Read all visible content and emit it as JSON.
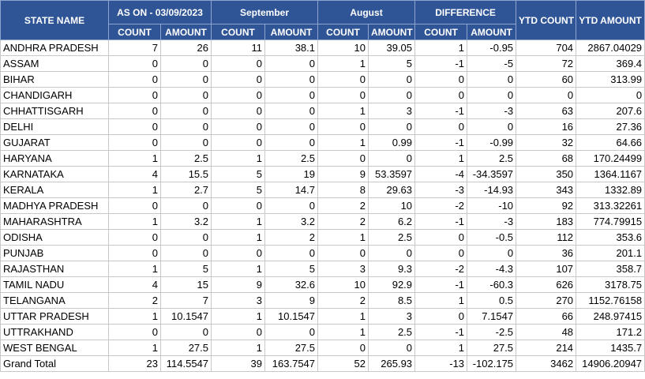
{
  "headers": {
    "state_name": "STATE NAME",
    "as_on": "AS ON - 03/09/2023",
    "september": "September",
    "august": "August",
    "difference": "DIFFERENCE",
    "ytd_count": "YTD COUNT",
    "ytd_amount": "YTD AMOUNT",
    "count": "COUNT",
    "amount": "AMOUNT"
  },
  "rows": [
    [
      "ANDHRA PRADESH",
      "7",
      "26",
      "11",
      "38.1",
      "10",
      "39.05",
      "1",
      "-0.95",
      "704",
      "2867.04029"
    ],
    [
      "ASSAM",
      "0",
      "0",
      "0",
      "0",
      "1",
      "5",
      "-1",
      "-5",
      "72",
      "369.4"
    ],
    [
      "BIHAR",
      "0",
      "0",
      "0",
      "0",
      "0",
      "0",
      "0",
      "0",
      "60",
      "313.99"
    ],
    [
      "CHANDIGARH",
      "0",
      "0",
      "0",
      "0",
      "0",
      "0",
      "0",
      "0",
      "0",
      "0"
    ],
    [
      "CHHATTISGARH",
      "0",
      "0",
      "0",
      "0",
      "1",
      "3",
      "-1",
      "-3",
      "63",
      "207.6"
    ],
    [
      "DELHI",
      "0",
      "0",
      "0",
      "0",
      "0",
      "0",
      "0",
      "0",
      "16",
      "27.36"
    ],
    [
      "GUJARAT",
      "0",
      "0",
      "0",
      "0",
      "1",
      "0.99",
      "-1",
      "-0.99",
      "32",
      "64.66"
    ],
    [
      "HARYANA",
      "1",
      "2.5",
      "1",
      "2.5",
      "0",
      "0",
      "1",
      "2.5",
      "68",
      "170.24499"
    ],
    [
      "KARNATAKA",
      "4",
      "15.5",
      "5",
      "19",
      "9",
      "53.3597",
      "-4",
      "-34.3597",
      "350",
      "1364.1167"
    ],
    [
      "KERALA",
      "1",
      "2.7",
      "5",
      "14.7",
      "8",
      "29.63",
      "-3",
      "-14.93",
      "343",
      "1332.89"
    ],
    [
      "MADHYA PRADESH",
      "0",
      "0",
      "0",
      "0",
      "2",
      "10",
      "-2",
      "-10",
      "92",
      "313.32261"
    ],
    [
      "MAHARASHTRA",
      "1",
      "3.2",
      "1",
      "3.2",
      "2",
      "6.2",
      "-1",
      "-3",
      "183",
      "774.79915"
    ],
    [
      "ODISHA",
      "0",
      "0",
      "1",
      "2",
      "1",
      "2.5",
      "0",
      "-0.5",
      "112",
      "353.6"
    ],
    [
      "PUNJAB",
      "0",
      "0",
      "0",
      "0",
      "0",
      "0",
      "0",
      "0",
      "36",
      "201.1"
    ],
    [
      "RAJASTHAN",
      "1",
      "5",
      "1",
      "5",
      "3",
      "9.3",
      "-2",
      "-4.3",
      "107",
      "358.7"
    ],
    [
      "TAMIL NADU",
      "4",
      "15",
      "9",
      "32.6",
      "10",
      "92.9",
      "-1",
      "-60.3",
      "626",
      "3178.75"
    ],
    [
      "TELANGANA",
      "2",
      "7",
      "3",
      "9",
      "2",
      "8.5",
      "1",
      "0.5",
      "270",
      "1152.76158"
    ],
    [
      "UTTAR PRADESH",
      "1",
      "10.1547",
      "1",
      "10.1547",
      "1",
      "3",
      "0",
      "7.1547",
      "66",
      "248.97415"
    ],
    [
      "UTTRAKHAND",
      "0",
      "0",
      "0",
      "0",
      "1",
      "2.5",
      "-1",
      "-2.5",
      "48",
      "171.2"
    ],
    [
      "WEST BENGAL",
      "1",
      "27.5",
      "1",
      "27.5",
      "0",
      "0",
      "1",
      "27.5",
      "214",
      "1435.7"
    ]
  ],
  "grand_total": [
    "Grand Total",
    "23",
    "114.5547",
    "39",
    "163.7547",
    "52",
    "265.93",
    "-13",
    "-102.175",
    "3462",
    "14906.20947"
  ],
  "colors": {
    "header_bg": "#2f5597",
    "header_text": "#ffffff",
    "grid": "#c8c8c8"
  }
}
